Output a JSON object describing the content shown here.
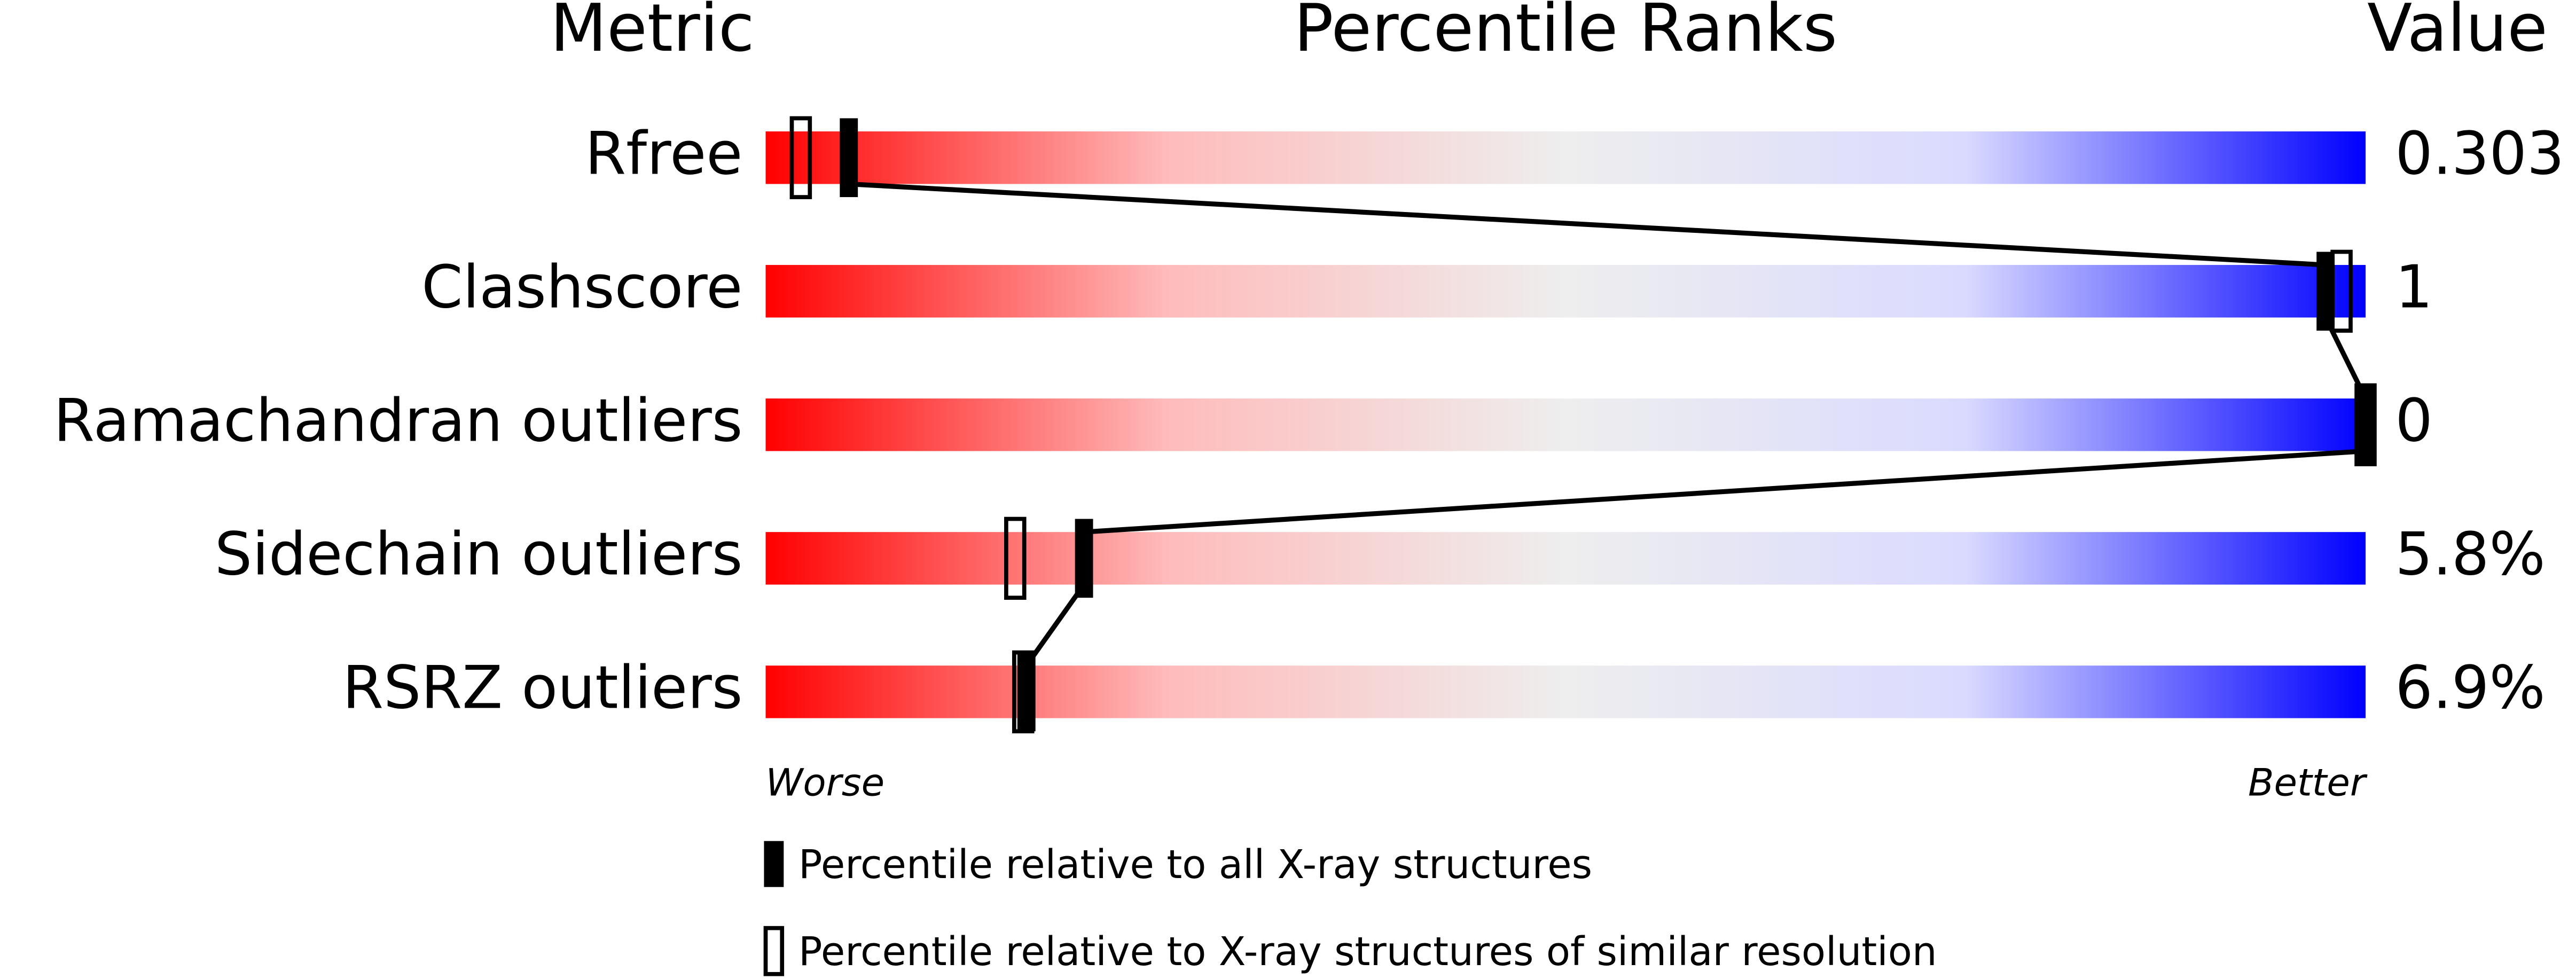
{
  "chart_data": {
    "type": "percentile",
    "headers": {
      "metric": "Metric",
      "ranks": "Percentile Ranks",
      "value": "Value"
    },
    "categories": [
      "Rfree",
      "Clashscore",
      "Ramachandran outliers",
      "Sidechain outliers",
      "RSRZ outliers"
    ],
    "value_labels": [
      "0.303",
      "1",
      "0",
      "5.8%",
      "6.9%"
    ],
    "series": [
      {
        "name": "Percentile relative to all X-ray structures",
        "color": "#000000",
        "filled": true,
        "values": [
          5.2,
          97.5,
          100,
          19.9,
          16.3
        ]
      },
      {
        "name": "Percentile relative to X-ray structures of similar resolution",
        "color": "#000000",
        "filled": false,
        "values": [
          2.2,
          98.5,
          100,
          15.6,
          16.1
        ]
      }
    ],
    "xlim": [
      0,
      100
    ],
    "worse": "Worse",
    "better": "Better",
    "gradient": [
      "#ff0000",
      "#ffbbbb",
      "#eeeeee",
      "#dadaff",
      "#0000ff"
    ]
  }
}
